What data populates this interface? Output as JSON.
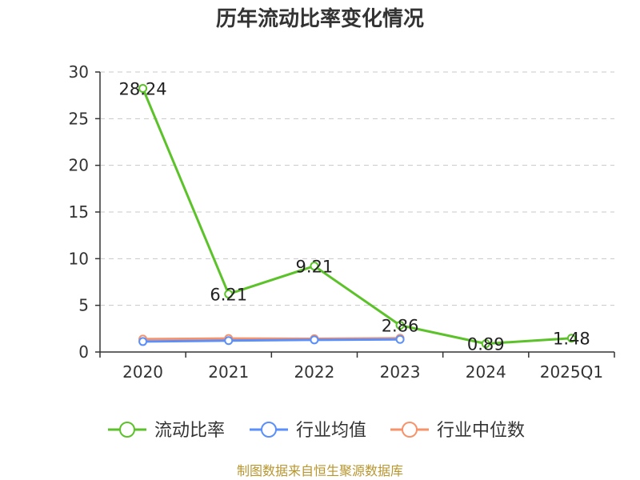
{
  "chart_data": {
    "type": "line",
    "title": "历年流动比率变化情况",
    "categories": [
      "2020",
      "2021",
      "2022",
      "2023",
      "2024",
      "2025Q1"
    ],
    "ylim": [
      0,
      30
    ],
    "yticks": [
      "0",
      "5",
      "10",
      "15",
      "20",
      "25",
      "30"
    ],
    "grid": true,
    "legend_position": "bottom",
    "series": [
      {
        "name": "流动比率",
        "color": "#5cc229",
        "values": [
          28.24,
          6.21,
          9.21,
          2.86,
          0.89,
          1.48
        ],
        "labels": [
          "28.24",
          "6.21",
          "9.21",
          "2.86",
          "0.89",
          "1.48"
        ]
      },
      {
        "name": "行业均值",
        "color": "#5b8ff9",
        "values": [
          1.12,
          1.22,
          1.3,
          1.35,
          null,
          null
        ]
      },
      {
        "name": "行业中位数",
        "color": "#f6936b",
        "values": [
          1.38,
          1.45,
          1.42,
          1.48,
          null,
          null
        ]
      }
    ]
  },
  "source": "制图数据来自恒生聚源数据库"
}
